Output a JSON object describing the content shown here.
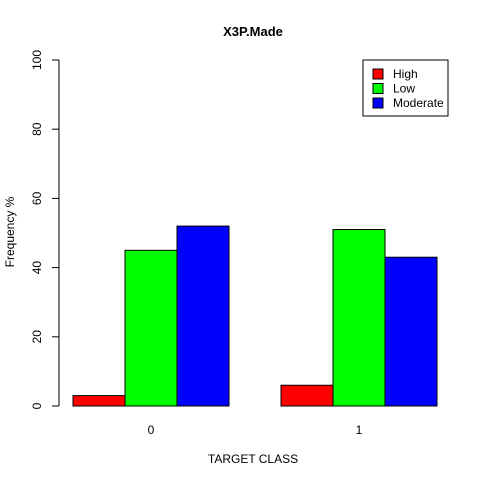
{
  "chart_data": {
    "type": "bar",
    "title": "X3P.Made",
    "xlabel": "TARGET CLASS",
    "ylabel": "Frequency %",
    "ylim": [
      0,
      100
    ],
    "yticks": [
      "0",
      "20",
      "40",
      "60",
      "80",
      "100"
    ],
    "categories": [
      "0",
      "1"
    ],
    "series": [
      {
        "name": "High",
        "color": "#ff0000",
        "values": [
          3,
          6
        ]
      },
      {
        "name": "Low",
        "color": "#00ff00",
        "values": [
          45,
          51
        ]
      },
      {
        "name": "Moderate",
        "color": "#0000ff",
        "values": [
          52,
          43
        ]
      }
    ],
    "legend": "top-right",
    "grid": false
  }
}
